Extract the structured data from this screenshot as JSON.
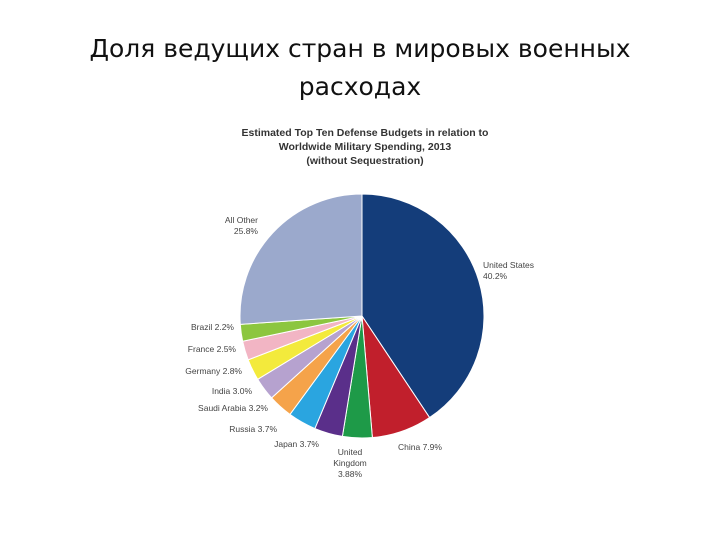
{
  "slide": {
    "title_line1": "Доля ведущих стран в мировых военных",
    "title_line2": "расходах"
  },
  "chart_data": {
    "type": "pie",
    "title_lines": [
      "Estimated Top Ten Defense Budgets in relation to",
      "Worldwide Military Spending, 2013",
      "(without Sequestration)"
    ],
    "slices": [
      {
        "label": "United States",
        "value": 40.2,
        "value_label": "40.2%",
        "color": "#143d7a"
      },
      {
        "label": "China",
        "value": 7.9,
        "value_label": "7.9%",
        "color": "#c11f2c"
      },
      {
        "label": "United Kingdom",
        "value": 3.88,
        "value_label": "3.88%",
        "color": "#1e9a48"
      },
      {
        "label": "Japan",
        "value": 3.7,
        "value_label": "3.7%",
        "color": "#5a2f8a"
      },
      {
        "label": "Russia",
        "value": 3.7,
        "value_label": "3.7%",
        "color": "#2aa5e0"
      },
      {
        "label": "Saudi Arabia",
        "value": 3.2,
        "value_label": "3.2%",
        "color": "#f5a34a"
      },
      {
        "label": "India",
        "value": 3.0,
        "value_label": "3.0%",
        "color": "#b6a2cf"
      },
      {
        "label": "Germany",
        "value": 2.8,
        "value_label": "2.8%",
        "color": "#f3ea3c"
      },
      {
        "label": "France",
        "value": 2.5,
        "value_label": "2.5%",
        "color": "#f2b5c4"
      },
      {
        "label": "Brazil",
        "value": 2.2,
        "value_label": "2.2%",
        "color": "#8cc63f"
      },
      {
        "label": "All Other",
        "value": 25.8,
        "value_label": "25.8%",
        "color": "#9ba9cc"
      }
    ]
  }
}
